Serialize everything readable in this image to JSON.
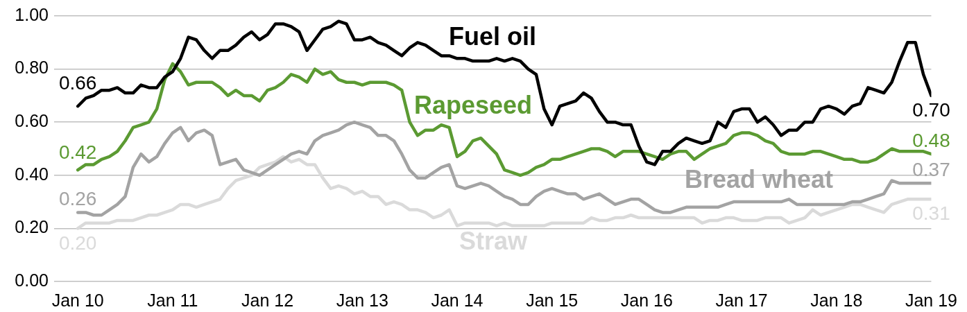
{
  "chart_data": {
    "type": "line",
    "x": [
      "2010-01",
      "2010-02",
      "2010-03",
      "2010-04",
      "2010-05",
      "2010-06",
      "2010-07",
      "2010-08",
      "2010-09",
      "2010-10",
      "2010-11",
      "2010-12",
      "2011-01",
      "2011-02",
      "2011-03",
      "2011-04",
      "2011-05",
      "2011-06",
      "2011-07",
      "2011-08",
      "2011-09",
      "2011-10",
      "2011-11",
      "2011-12",
      "2012-01",
      "2012-02",
      "2012-03",
      "2012-04",
      "2012-05",
      "2012-06",
      "2012-07",
      "2012-08",
      "2012-09",
      "2012-10",
      "2012-11",
      "2012-12",
      "2013-01",
      "2013-02",
      "2013-03",
      "2013-04",
      "2013-05",
      "2013-06",
      "2013-07",
      "2013-08",
      "2013-09",
      "2013-10",
      "2013-11",
      "2013-12",
      "2014-01",
      "2014-02",
      "2014-03",
      "2014-04",
      "2014-05",
      "2014-06",
      "2014-07",
      "2014-08",
      "2014-09",
      "2014-10",
      "2014-11",
      "2014-12",
      "2015-01",
      "2015-02",
      "2015-03",
      "2015-04",
      "2015-05",
      "2015-06",
      "2015-07",
      "2015-08",
      "2015-09",
      "2015-10",
      "2015-11",
      "2015-12",
      "2016-01",
      "2016-02",
      "2016-03",
      "2016-04",
      "2016-05",
      "2016-06",
      "2016-07",
      "2016-08",
      "2016-09",
      "2016-10",
      "2016-11",
      "2016-12",
      "2017-01",
      "2017-02",
      "2017-03",
      "2017-04",
      "2017-05",
      "2017-06",
      "2017-07",
      "2017-08",
      "2017-09",
      "2017-10",
      "2017-11",
      "2017-12",
      "2018-01",
      "2018-02",
      "2018-03",
      "2018-04",
      "2018-05",
      "2018-06",
      "2018-07",
      "2018-08",
      "2018-09",
      "2018-10",
      "2018-11",
      "2018-12",
      "2019-01"
    ],
    "xlim": [
      "2009-10",
      "2019-01"
    ],
    "xticks": [
      {
        "value": "2010-01",
        "label": "Jan 10"
      },
      {
        "value": "2011-01",
        "label": "Jan 11"
      },
      {
        "value": "2012-01",
        "label": "Jan 12"
      },
      {
        "value": "2013-01",
        "label": "Jan 13"
      },
      {
        "value": "2014-01",
        "label": "Jan 14"
      },
      {
        "value": "2015-01",
        "label": "Jan 15"
      },
      {
        "value": "2016-01",
        "label": "Jan 16"
      },
      {
        "value": "2017-01",
        "label": "Jan 17"
      },
      {
        "value": "2018-01",
        "label": "Jan 18"
      },
      {
        "value": "2019-01",
        "label": "Jan 19"
      }
    ],
    "ylim": [
      0,
      1
    ],
    "yticks": [
      {
        "value": 0,
        "label": "0.00"
      },
      {
        "value": 0.2,
        "label": "0.20"
      },
      {
        "value": 0.4,
        "label": "0.40"
      },
      {
        "value": 0.6,
        "label": "0.60"
      },
      {
        "value": 0.8,
        "label": "0.80"
      },
      {
        "value": 1,
        "label": "1.00"
      }
    ],
    "grid": "y",
    "legend": false,
    "marker": "none",
    "line_style": "solid",
    "series": [
      {
        "name": "Fuel oil",
        "color": "#000000",
        "values": [
          0.66,
          0.69,
          0.7,
          0.72,
          0.72,
          0.73,
          0.71,
          0.71,
          0.74,
          0.73,
          0.73,
          0.77,
          0.79,
          0.84,
          0.92,
          0.91,
          0.87,
          0.84,
          0.87,
          0.87,
          0.89,
          0.92,
          0.94,
          0.91,
          0.93,
          0.97,
          0.97,
          0.96,
          0.94,
          0.87,
          0.91,
          0.95,
          0.96,
          0.98,
          0.97,
          0.91,
          0.91,
          0.92,
          0.9,
          0.89,
          0.87,
          0.85,
          0.88,
          0.9,
          0.89,
          0.87,
          0.85,
          0.85,
          0.84,
          0.84,
          0.83,
          0.83,
          0.83,
          0.84,
          0.83,
          0.84,
          0.83,
          0.8,
          0.78,
          0.65,
          0.59,
          0.66,
          0.67,
          0.68,
          0.71,
          0.69,
          0.64,
          0.6,
          0.6,
          0.59,
          0.59,
          0.51,
          0.45,
          0.44,
          0.49,
          0.49,
          0.52,
          0.54,
          0.53,
          0.52,
          0.53,
          0.6,
          0.58,
          0.64,
          0.65,
          0.65,
          0.6,
          0.62,
          0.59,
          0.55,
          0.57,
          0.57,
          0.6,
          0.6,
          0.65,
          0.66,
          0.65,
          0.63,
          0.66,
          0.67,
          0.73,
          0.72,
          0.71,
          0.75,
          0.83,
          0.9,
          0.9,
          0.78,
          0.7
        ],
        "value_labels": [
          "0.66",
          null,
          null,
          null,
          null,
          null,
          null,
          null,
          null,
          null,
          null,
          null,
          null,
          null,
          null,
          null,
          null,
          null,
          null,
          null,
          null,
          null,
          null,
          null,
          null,
          null,
          null,
          null,
          null,
          null,
          null,
          null,
          null,
          null,
          null,
          null,
          null,
          null,
          null,
          null,
          null,
          null,
          null,
          null,
          null,
          null,
          null,
          null,
          null,
          null,
          null,
          null,
          null,
          null,
          null,
          null,
          null,
          null,
          null,
          null,
          null,
          null,
          null,
          null,
          null,
          null,
          null,
          null,
          null,
          null,
          null,
          null,
          null,
          null,
          null,
          null,
          null,
          null,
          null,
          null,
          null,
          null,
          null,
          null,
          null,
          null,
          null,
          null,
          null,
          null,
          null,
          null,
          null,
          null,
          null,
          null,
          null,
          null,
          null,
          null,
          null,
          null,
          null,
          null,
          null,
          null,
          null,
          null,
          "0.70"
        ]
      },
      {
        "name": "Rapeseed",
        "color": "#5b9a32",
        "values": [
          0.42,
          0.44,
          0.44,
          0.46,
          0.47,
          0.49,
          0.53,
          0.58,
          0.59,
          0.6,
          0.65,
          0.76,
          0.82,
          0.79,
          0.74,
          0.75,
          0.75,
          0.75,
          0.73,
          0.7,
          0.72,
          0.7,
          0.7,
          0.68,
          0.72,
          0.73,
          0.75,
          0.78,
          0.77,
          0.75,
          0.8,
          0.78,
          0.79,
          0.76,
          0.75,
          0.75,
          0.74,
          0.75,
          0.75,
          0.75,
          0.74,
          0.72,
          0.6,
          0.55,
          0.57,
          0.57,
          0.59,
          0.58,
          0.47,
          0.49,
          0.53,
          0.54,
          0.51,
          0.48,
          0.42,
          0.41,
          0.4,
          0.41,
          0.43,
          0.44,
          0.46,
          0.46,
          0.47,
          0.48,
          0.49,
          0.5,
          0.5,
          0.49,
          0.47,
          0.49,
          0.49,
          0.49,
          0.48,
          0.47,
          0.46,
          0.48,
          0.49,
          0.49,
          0.46,
          0.48,
          0.5,
          0.51,
          0.52,
          0.55,
          0.56,
          0.56,
          0.55,
          0.53,
          0.52,
          0.49,
          0.48,
          0.48,
          0.48,
          0.49,
          0.49,
          0.48,
          0.47,
          0.46,
          0.46,
          0.45,
          0.45,
          0.46,
          0.48,
          0.5,
          0.49,
          0.49,
          0.49,
          0.49,
          0.48
        ],
        "value_labels": [
          "0.42",
          null,
          null,
          null,
          null,
          null,
          null,
          null,
          null,
          null,
          null,
          null,
          null,
          null,
          null,
          null,
          null,
          null,
          null,
          null,
          null,
          null,
          null,
          null,
          null,
          null,
          null,
          null,
          null,
          null,
          null,
          null,
          null,
          null,
          null,
          null,
          null,
          null,
          null,
          null,
          null,
          null,
          null,
          null,
          null,
          null,
          null,
          null,
          null,
          null,
          null,
          null,
          null,
          null,
          null,
          null,
          null,
          null,
          null,
          null,
          null,
          null,
          null,
          null,
          null,
          null,
          null,
          null,
          null,
          null,
          null,
          null,
          null,
          null,
          null,
          null,
          null,
          null,
          null,
          null,
          null,
          null,
          null,
          null,
          null,
          null,
          null,
          null,
          null,
          null,
          null,
          null,
          null,
          null,
          null,
          null,
          null,
          null,
          null,
          null,
          null,
          null,
          null,
          null,
          null,
          null,
          null,
          null,
          "0.48"
        ]
      },
      {
        "name": "Bread wheat",
        "color": "#a3a3a3",
        "values": [
          0.26,
          0.26,
          0.25,
          0.25,
          0.27,
          0.29,
          0.32,
          0.43,
          0.48,
          0.45,
          0.47,
          0.52,
          0.56,
          0.58,
          0.53,
          0.56,
          0.57,
          0.55,
          0.44,
          0.45,
          0.46,
          0.42,
          0.41,
          0.4,
          0.42,
          0.44,
          0.46,
          0.48,
          0.49,
          0.48,
          0.53,
          0.55,
          0.56,
          0.57,
          0.59,
          0.6,
          0.59,
          0.58,
          0.55,
          0.55,
          0.53,
          0.48,
          0.42,
          0.39,
          0.39,
          0.41,
          0.43,
          0.44,
          0.36,
          0.35,
          0.36,
          0.37,
          0.36,
          0.34,
          0.32,
          0.31,
          0.29,
          0.29,
          0.32,
          0.34,
          0.35,
          0.34,
          0.33,
          0.33,
          0.31,
          0.32,
          0.33,
          0.31,
          0.29,
          0.3,
          0.31,
          0.31,
          0.29,
          0.27,
          0.26,
          0.26,
          0.27,
          0.28,
          0.28,
          0.28,
          0.28,
          0.28,
          0.29,
          0.3,
          0.3,
          0.3,
          0.3,
          0.3,
          0.3,
          0.3,
          0.31,
          0.29,
          0.29,
          0.29,
          0.29,
          0.29,
          0.29,
          0.29,
          0.3,
          0.3,
          0.31,
          0.32,
          0.33,
          0.38,
          0.37,
          0.37,
          0.37,
          0.37,
          0.37
        ],
        "value_labels": [
          "0.26",
          null,
          null,
          null,
          null,
          null,
          null,
          null,
          null,
          null,
          null,
          null,
          null,
          null,
          null,
          null,
          null,
          null,
          null,
          null,
          null,
          null,
          null,
          null,
          null,
          null,
          null,
          null,
          null,
          null,
          null,
          null,
          null,
          null,
          null,
          null,
          null,
          null,
          null,
          null,
          null,
          null,
          null,
          null,
          null,
          null,
          null,
          null,
          null,
          null,
          null,
          null,
          null,
          null,
          null,
          null,
          null,
          null,
          null,
          null,
          null,
          null,
          null,
          null,
          null,
          null,
          null,
          null,
          null,
          null,
          null,
          null,
          null,
          null,
          null,
          null,
          null,
          null,
          null,
          null,
          null,
          null,
          null,
          null,
          null,
          null,
          null,
          null,
          null,
          null,
          null,
          null,
          null,
          null,
          null,
          null,
          null,
          null,
          null,
          null,
          null,
          null,
          null,
          null,
          null,
          null,
          null,
          null,
          "0.37"
        ]
      },
      {
        "name": "Straw",
        "color": "#dadada",
        "values": [
          0.2,
          0.22,
          0.22,
          0.22,
          0.22,
          0.23,
          0.23,
          0.23,
          0.24,
          0.25,
          0.25,
          0.26,
          0.27,
          0.29,
          0.29,
          0.28,
          0.29,
          0.3,
          0.31,
          0.35,
          0.38,
          0.39,
          0.4,
          0.43,
          0.44,
          0.45,
          0.47,
          0.45,
          0.46,
          0.44,
          0.44,
          0.39,
          0.35,
          0.36,
          0.35,
          0.33,
          0.34,
          0.32,
          0.32,
          0.29,
          0.3,
          0.29,
          0.27,
          0.27,
          0.26,
          0.24,
          0.25,
          0.27,
          0.21,
          0.22,
          0.22,
          0.22,
          0.22,
          0.21,
          0.22,
          0.21,
          0.21,
          0.21,
          0.21,
          0.21,
          0.22,
          0.22,
          0.22,
          0.22,
          0.22,
          0.24,
          0.23,
          0.23,
          0.24,
          0.24,
          0.25,
          0.24,
          0.24,
          0.24,
          0.24,
          0.24,
          0.24,
          0.24,
          0.24,
          0.22,
          0.23,
          0.23,
          0.24,
          0.24,
          0.23,
          0.23,
          0.23,
          0.24,
          0.24,
          0.24,
          0.22,
          0.23,
          0.24,
          0.27,
          0.25,
          0.26,
          0.27,
          0.28,
          0.29,
          0.29,
          0.28,
          0.27,
          0.26,
          0.29,
          0.3,
          0.31,
          0.31,
          0.31,
          0.31
        ],
        "value_labels": [
          "0.20",
          null,
          null,
          null,
          null,
          null,
          null,
          null,
          null,
          null,
          null,
          null,
          null,
          null,
          null,
          null,
          null,
          null,
          null,
          null,
          null,
          null,
          null,
          null,
          null,
          null,
          null,
          null,
          null,
          null,
          null,
          null,
          null,
          null,
          null,
          null,
          null,
          null,
          null,
          null,
          null,
          null,
          null,
          null,
          null,
          null,
          null,
          null,
          null,
          null,
          null,
          null,
          null,
          null,
          null,
          null,
          null,
          null,
          null,
          null,
          null,
          null,
          null,
          null,
          null,
          null,
          null,
          null,
          null,
          null,
          null,
          null,
          null,
          null,
          null,
          null,
          null,
          null,
          null,
          null,
          null,
          null,
          null,
          null,
          null,
          null,
          null,
          null,
          null,
          null,
          null,
          null,
          null,
          null,
          null,
          null,
          null,
          null,
          null,
          null,
          null,
          null,
          null,
          null,
          null,
          null,
          null,
          null,
          "0.31"
        ]
      }
    ]
  }
}
